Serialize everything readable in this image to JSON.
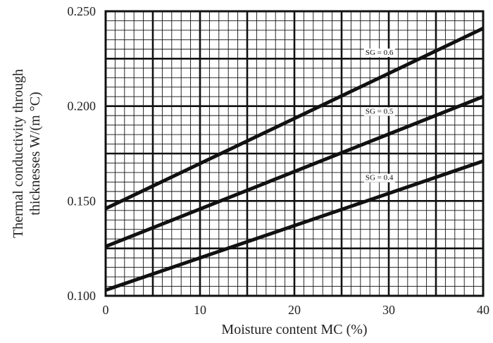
{
  "chart_data": {
    "type": "line",
    "title": "",
    "xlabel": "Moisture content MC (%)",
    "ylabel_lines": [
      "Thermal conductivity through",
      "thicknesses W/(m °C)"
    ],
    "xlim": [
      0,
      40
    ],
    "ylim": [
      0.1,
      0.25
    ],
    "x_ticks": [
      "0",
      "10",
      "20",
      "30",
      "40"
    ],
    "y_ticks": [
      "0.100",
      "0.150",
      "0.200",
      "0.250"
    ],
    "x_tick_values": [
      0,
      10,
      20,
      30,
      40
    ],
    "y_tick_values": [
      0.1,
      0.15,
      0.2,
      0.25
    ],
    "grid": true,
    "series": [
      {
        "name": "SG = 0.6",
        "x": [
          0,
          40
        ],
        "y": [
          0.146,
          0.241
        ],
        "label_x": 29,
        "label_y": 0.227
      },
      {
        "name": "SG = 0.5",
        "x": [
          0,
          40
        ],
        "y": [
          0.126,
          0.205
        ],
        "label_x": 29,
        "label_y": 0.196
      },
      {
        "name": "SG = 0.4",
        "x": [
          0,
          40
        ],
        "y": [
          0.103,
          0.171
        ],
        "label_x": 29,
        "label_y": 0.161
      }
    ]
  }
}
